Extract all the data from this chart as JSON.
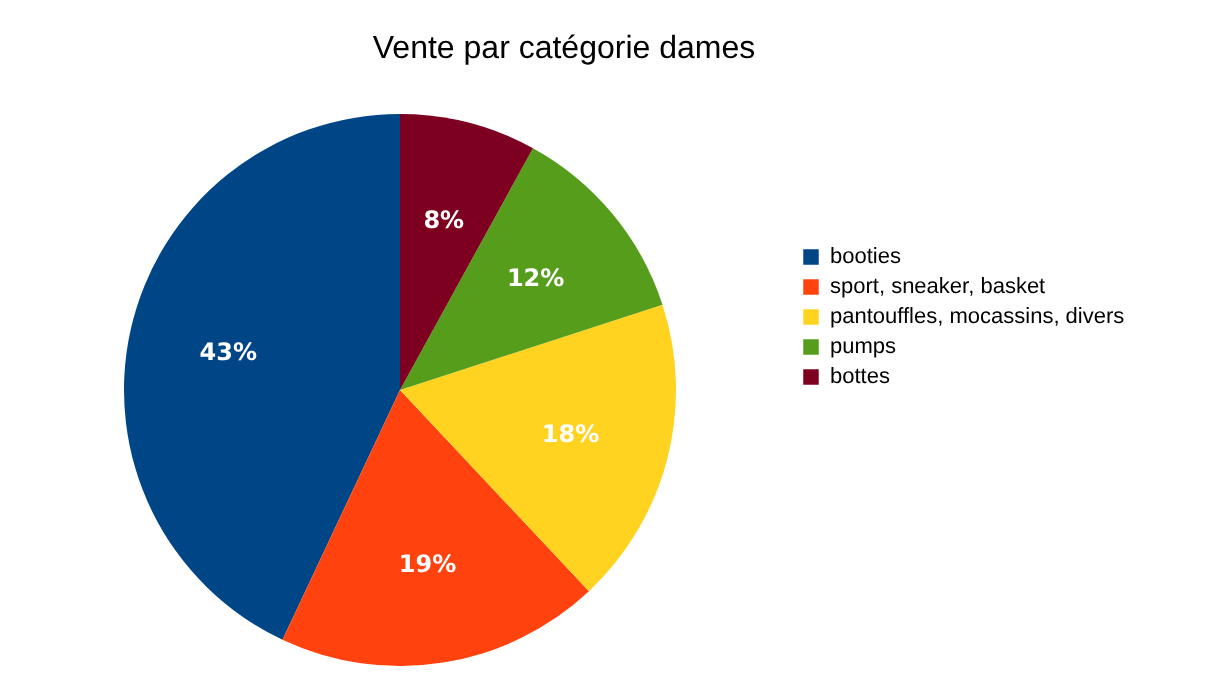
{
  "chart_data": {
    "type": "pie",
    "title": "Vente par catégorie dames",
    "categories": [
      "booties",
      "sport, sneaker, basket",
      "pantouffles, mocassins, divers",
      "pumps",
      "bottes"
    ],
    "values": [
      43,
      19,
      18,
      12,
      8
    ],
    "value_labels": [
      "43%",
      "19%",
      "18%",
      "12%",
      "8%"
    ],
    "colors": [
      "#004586",
      "#ff420e",
      "#ffd320",
      "#579d1c",
      "#7e0021"
    ],
    "legend": "right"
  }
}
